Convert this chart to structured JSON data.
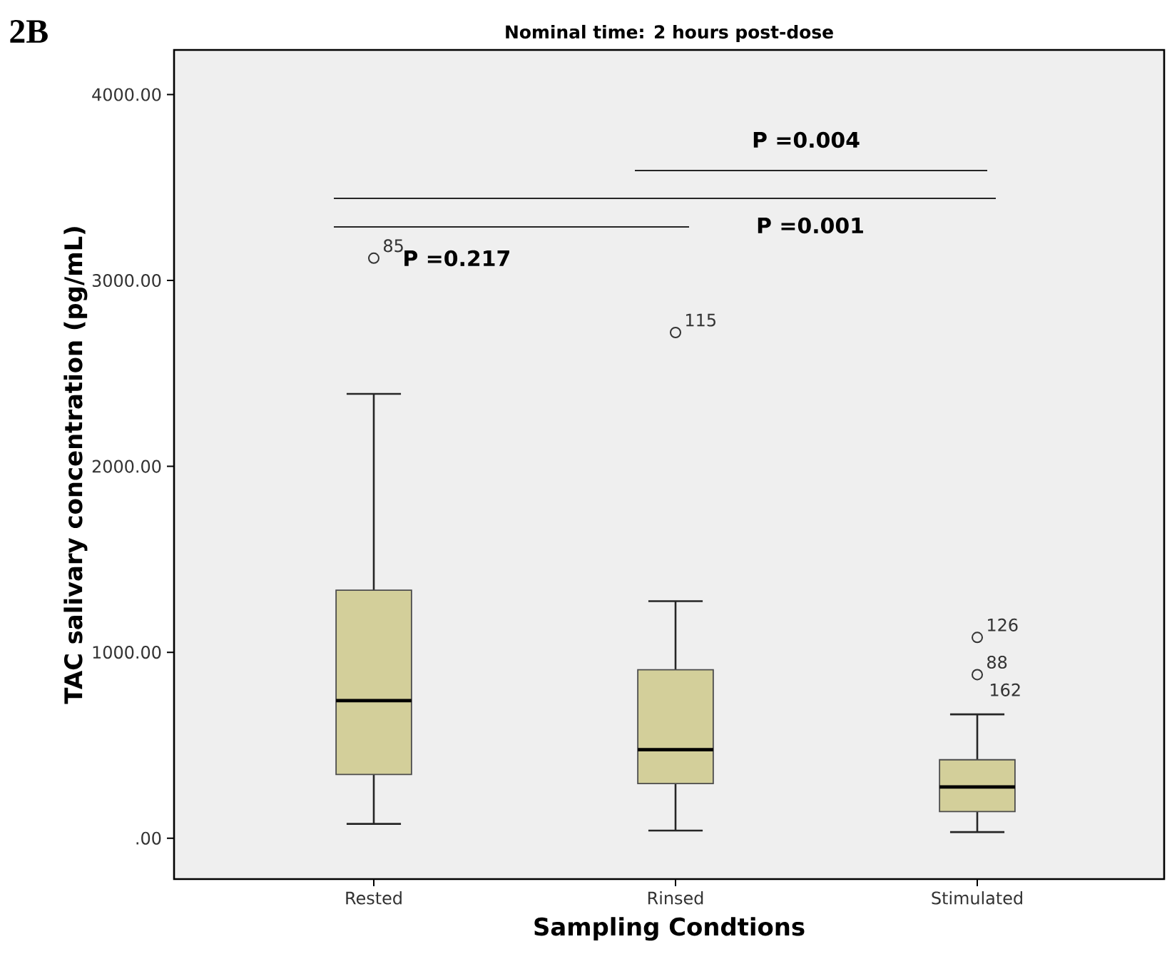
{
  "chart_data": {
    "type": "box",
    "title": "Nominal time: 2 hours post-dose",
    "xlabel": "Sampling Condtions",
    "ylabel": "TAC salivary concentration (pg/mL)",
    "categories": [
      "Rested",
      "Rinsed",
      "Stimulated"
    ],
    "color": "#d3cf9a",
    "boxes": [
      {
        "low": 77,
        "q1": 343,
        "median": 740,
        "q3": 1334,
        "high": 2390,
        "outliers": [
          3120
        ]
      },
      {
        "low": 41,
        "q1": 294,
        "median": 476,
        "q3": 906,
        "high": 1275,
        "outliers": [
          2720
        ]
      },
      {
        "low": 33,
        "q1": 143,
        "median": 276,
        "q3": 422,
        "high": 666,
        "outliers": [
          1080,
          880
        ]
      }
    ],
    "ylim": [
      -220,
      4240
    ],
    "yticks": [
      {
        "value": 0,
        "label": ".00"
      },
      {
        "value": 1000,
        "label": "1000.00"
      },
      {
        "value": 2000,
        "label": "2000.00"
      },
      {
        "value": 3000,
        "label": "3000.00"
      },
      {
        "value": 4000,
        "label": "4000.00"
      }
    ],
    "grid": false,
    "annotations": [
      "2B",
      "P =0.004",
      "P =0.001",
      "P =0.217",
      "85",
      "115",
      "126",
      "88",
      "162"
    ]
  }
}
